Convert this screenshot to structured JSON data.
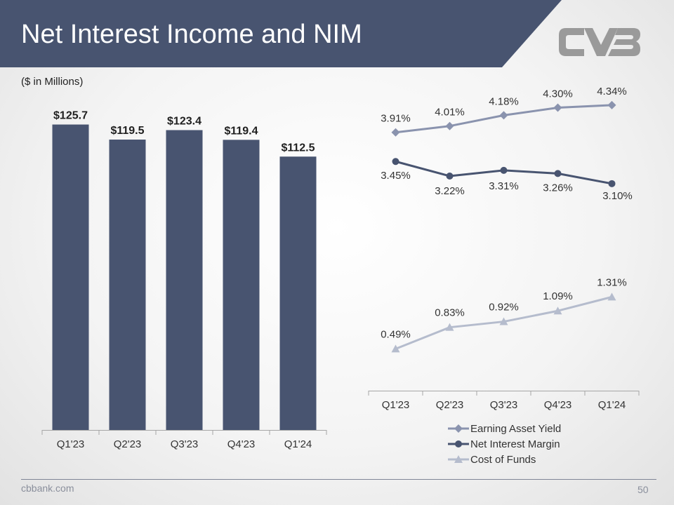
{
  "slide": {
    "title": "Net Interest Income and NIM",
    "subtitle": "($ in Millions)",
    "footer_left": "cbbank.com",
    "page_number": "50"
  },
  "colors": {
    "banner": "#485470",
    "bar": "#485470",
    "earning_asset_yield": "#8a93ae",
    "net_interest_margin": "#485470",
    "cost_of_funds": "#b5bccd",
    "logo": "#9a9a9a"
  },
  "chart_data": [
    {
      "type": "bar",
      "categories": [
        "Q1'23",
        "Q2'23",
        "Q3'23",
        "Q4'23",
        "Q1'24"
      ],
      "values": [
        125.7,
        119.5,
        123.4,
        119.4,
        112.5
      ],
      "data_labels": [
        "$125.7",
        "$119.5",
        "$123.4",
        "$119.4",
        "$112.5"
      ],
      "ylim": [
        0,
        140
      ],
      "grid": false
    },
    {
      "type": "line",
      "categories": [
        "Q1'23",
        "Q2'23",
        "Q3'23",
        "Q4'23",
        "Q1'24"
      ],
      "series": [
        {
          "name": "Earning Asset Yield",
          "values": [
            3.91,
            4.01,
            4.18,
            4.3,
            4.34
          ],
          "data_labels": [
            "3.91%",
            "4.01%",
            "4.18%",
            "4.30%",
            "4.34%"
          ],
          "marker": "diamond"
        },
        {
          "name": "Net Interest Margin",
          "values": [
            3.45,
            3.22,
            3.31,
            3.26,
            3.1
          ],
          "data_labels": [
            "3.45%",
            "3.22%",
            "3.31%",
            "3.26%",
            "3.10%"
          ],
          "marker": "circle"
        },
        {
          "name": "Cost of Funds",
          "values": [
            0.49,
            0.83,
            0.92,
            1.09,
            1.31
          ],
          "data_labels": [
            "0.49%",
            "0.83%",
            "0.92%",
            "1.09%",
            "1.31%"
          ],
          "marker": "triangle"
        }
      ],
      "legend": "bottom",
      "grid": false
    }
  ]
}
